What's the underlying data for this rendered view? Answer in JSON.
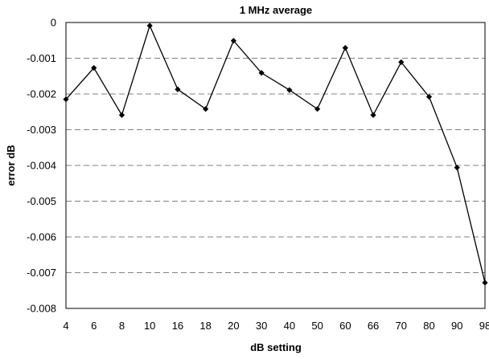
{
  "chart_data": {
    "type": "line",
    "title": "1 MHz average",
    "xlabel": "dB setting",
    "ylabel": "error dB",
    "categories": [
      "4",
      "6",
      "8",
      "10",
      "16",
      "18",
      "20",
      "30",
      "40",
      "50",
      "60",
      "66",
      "70",
      "80",
      "90",
      "98"
    ],
    "series": [
      {
        "values": [
          -0.00215,
          -0.00127,
          -0.00259,
          -9e-05,
          -0.00187,
          -0.00242,
          -0.00051,
          -0.00141,
          -0.00189,
          -0.00242,
          -0.00071,
          -0.00259,
          -0.00111,
          -0.00208,
          -0.00406,
          -0.00728
        ]
      }
    ],
    "ylim": [
      -0.008,
      0
    ],
    "yticks": [
      "0",
      "-0.001",
      "-0.002",
      "-0.003",
      "-0.004",
      "-0.005",
      "-0.006",
      "-0.007",
      "-0.008"
    ],
    "grid": "horizontal dashed",
    "legend": "none",
    "colors": {
      "line": "#000000",
      "grid": "#808080",
      "axis": "#000000"
    }
  }
}
